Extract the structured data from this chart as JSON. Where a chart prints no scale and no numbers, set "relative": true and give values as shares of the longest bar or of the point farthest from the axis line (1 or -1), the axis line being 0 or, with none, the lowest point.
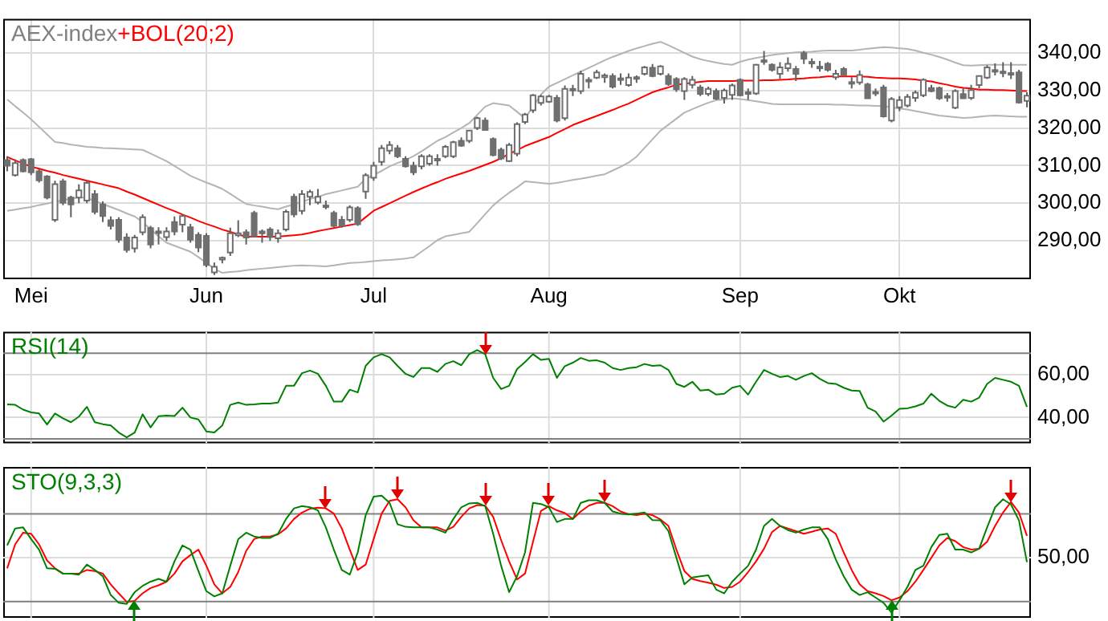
{
  "chart_data": [
    {
      "type": "candlestick",
      "title": "AEX-index",
      "legend": "top left",
      "grid": true,
      "categories": [
        null,
        null,
        null,
        "Mei",
        null,
        null,
        null,
        null,
        null,
        null,
        null,
        null,
        null,
        null,
        null,
        null,
        null,
        null,
        null,
        null,
        null,
        null,
        null,
        null,
        null,
        "Jun",
        null,
        null,
        null,
        null,
        null,
        null,
        null,
        null,
        null,
        null,
        null,
        null,
        null,
        null,
        null,
        null,
        null,
        null,
        null,
        null,
        "Jul",
        null,
        null,
        null,
        null,
        null,
        null,
        null,
        null,
        null,
        null,
        null,
        null,
        null,
        null,
        null,
        null,
        null,
        null,
        null,
        null,
        null,
        "Aug",
        null,
        null,
        null,
        null,
        null,
        null,
        null,
        null,
        null,
        null,
        null,
        null,
        null,
        null,
        null,
        null,
        null,
        null,
        null,
        null,
        null,
        null,
        null,
        "Sep",
        null,
        null,
        null,
        null,
        null,
        null,
        null,
        null,
        null,
        null,
        null,
        null,
        null,
        null,
        null,
        null,
        null,
        null,
        null,
        "Okt",
        null,
        null,
        null,
        null,
        null,
        null,
        null,
        null,
        null,
        null,
        null,
        null,
        null,
        null,
        null,
        null
      ],
      "ylim": [
        279.8,
        349
      ],
      "yticks": [
        {
          "value": 290,
          "label": "290,00"
        },
        {
          "value": 300,
          "label": "300,00"
        },
        {
          "value": 310,
          "label": "310,00"
        },
        {
          "value": 320,
          "label": "320,00"
        },
        {
          "value": 330,
          "label": "330,00"
        },
        {
          "value": 340,
          "label": "340,00"
        }
      ],
      "ohlc": [
        [
          311.5,
          312.5,
          308.5,
          310
        ],
        [
          307.5,
          311.7,
          307.1,
          310.7
        ],
        [
          311.5,
          311.9,
          308.2,
          308.5
        ],
        [
          311.7,
          312,
          307.5,
          308.2
        ],
        [
          308.5,
          309,
          305.5,
          306.1
        ],
        [
          307.1,
          307.5,
          301,
          301.5
        ],
        [
          295.6,
          306,
          295,
          305.1
        ],
        [
          305.8,
          306.5,
          299.5,
          300.1
        ],
        [
          301.5,
          302,
          296.3,
          299.7
        ],
        [
          301.5,
          305,
          300,
          303.4
        ],
        [
          300.7,
          306,
          300,
          305.4
        ],
        [
          302.4,
          303.5,
          297,
          297.7
        ],
        [
          299.7,
          300.5,
          295,
          296.6
        ],
        [
          295.5,
          296.5,
          293,
          294
        ],
        [
          295.6,
          296.3,
          289.5,
          290.3
        ],
        [
          290.9,
          292,
          286.9,
          287.6
        ],
        [
          288,
          291.6,
          286.9,
          290.9
        ],
        [
          292.3,
          297,
          291.5,
          296.3
        ],
        [
          293.4,
          294,
          288,
          289
        ],
        [
          292.5,
          293.6,
          289,
          292.3
        ],
        [
          291,
          293.6,
          290,
          292.5
        ],
        [
          295,
          296.5,
          291.5,
          292.5
        ],
        [
          294.3,
          297,
          292.3,
          296.6
        ],
        [
          293.6,
          294.5,
          289.5,
          290.3
        ],
        [
          291.6,
          292.3,
          287,
          288.2
        ],
        [
          291.3,
          292,
          283,
          283.6
        ],
        [
          281.6,
          284.2,
          280.9,
          283.1
        ],
        [
          285,
          285.8,
          284,
          285.5
        ],
        [
          286.9,
          293.5,
          286,
          292
        ],
        [
          291.5,
          295.5,
          291,
          292
        ],
        [
          292.3,
          293,
          289,
          290.9
        ],
        [
          297.4,
          298,
          290.9,
          291.2
        ],
        [
          292.5,
          293,
          289.5,
          292
        ],
        [
          293,
          293.6,
          290,
          291
        ],
        [
          290.7,
          293,
          289.5,
          292
        ],
        [
          293,
          298.3,
          292.5,
          297.7
        ],
        [
          301.7,
          302.5,
          296.3,
          297
        ],
        [
          298,
          303.5,
          297,
          302.4
        ],
        [
          301.7,
          303.6,
          299.5,
          303
        ],
        [
          300.2,
          303.8,
          299.7,
          301.7
        ],
        [
          299.4,
          300.7,
          298.4,
          299
        ],
        [
          297.4,
          298,
          293.6,
          294
        ],
        [
          295.6,
          296.6,
          293.5,
          294
        ],
        [
          295.6,
          299.5,
          295,
          298.9
        ],
        [
          298.7,
          299.2,
          294,
          294.4
        ],
        [
          303.1,
          308,
          301.2,
          307.4
        ],
        [
          306.8,
          311,
          306,
          310
        ],
        [
          311,
          315.5,
          310,
          314.6
        ],
        [
          314,
          316.5,
          313,
          315.5
        ],
        [
          314.6,
          315.5,
          312,
          312.5
        ],
        [
          311.8,
          312.5,
          309.5,
          309.8
        ],
        [
          310,
          311,
          307.5,
          308.2
        ],
        [
          309.8,
          313,
          309,
          312.5
        ],
        [
          310.5,
          313,
          310,
          312.5
        ],
        [
          311.5,
          313,
          310,
          311.8
        ],
        [
          312.5,
          315.5,
          312,
          315
        ],
        [
          312.5,
          316.6,
          312,
          316.2
        ],
        [
          316.6,
          317.5,
          315,
          315.3
        ],
        [
          316.6,
          319.5,
          316,
          319.3
        ],
        [
          320,
          323,
          319.5,
          322.6
        ],
        [
          322,
          322.8,
          319.5,
          319.5
        ],
        [
          317.1,
          317.5,
          312.5,
          312.8
        ],
        [
          314.2,
          314.8,
          311.5,
          311.9
        ],
        [
          311.2,
          316,
          311,
          315.5
        ],
        [
          313.2,
          321.5,
          312.5,
          321
        ],
        [
          321.6,
          324,
          321,
          323.6
        ],
        [
          324.7,
          329,
          324,
          328.7
        ],
        [
          326.7,
          328.8,
          326,
          328.4
        ],
        [
          327,
          328.8,
          326.7,
          328.4
        ],
        [
          328,
          328.8,
          321.5,
          322
        ],
        [
          322.6,
          331.3,
          322,
          330.4
        ],
        [
          330,
          331.5,
          328.5,
          330.4
        ],
        [
          329.8,
          335.2,
          329,
          334.4
        ],
        [
          332.4,
          333.5,
          330.5,
          332.8
        ],
        [
          333.4,
          335.5,
          333,
          334.8
        ],
        [
          333.5,
          334.5,
          332,
          334
        ],
        [
          333.8,
          334.5,
          330.5,
          331
        ],
        [
          333,
          334.5,
          331.5,
          333.2
        ],
        [
          331.4,
          334.5,
          331,
          333.4
        ],
        [
          333.5,
          334,
          332,
          333.5
        ],
        [
          334.4,
          336.5,
          334,
          336.1
        ],
        [
          336,
          337,
          333.5,
          333.8
        ],
        [
          334.4,
          336.7,
          334,
          336.4
        ],
        [
          333.8,
          334.5,
          331.2,
          331.7
        ],
        [
          333,
          333.5,
          329.6,
          330.3
        ],
        [
          329.8,
          333.5,
          327.5,
          333
        ],
        [
          331.5,
          333.8,
          330.5,
          332.8
        ],
        [
          330.8,
          331.5,
          328.5,
          329.1
        ],
        [
          329.1,
          331,
          328.5,
          330.4
        ],
        [
          329.8,
          330.5,
          327.5,
          327.8
        ],
        [
          328,
          330.5,
          326.5,
          330
        ],
        [
          328.8,
          331.8,
          327.5,
          331.3
        ],
        [
          332.8,
          333.2,
          328.5,
          328.7
        ],
        [
          329.5,
          330.5,
          327.5,
          329.3
        ],
        [
          329.2,
          337,
          328.8,
          336.8
        ],
        [
          337.6,
          340.5,
          336.8,
          338
        ],
        [
          336.8,
          337.2,
          335,
          335.5
        ],
        [
          334.4,
          337.5,
          333,
          336.1
        ],
        [
          335.9,
          338.8,
          335,
          337.1
        ],
        [
          335.7,
          336.5,
          332.5,
          334.4
        ],
        [
          339.9,
          340.5,
          337,
          338.4
        ],
        [
          337.5,
          338.5,
          336,
          337.6
        ],
        [
          336.3,
          337.8,
          335,
          336.1
        ],
        [
          337.1,
          337.5,
          335,
          335.5
        ],
        [
          333.5,
          335.5,
          332.8,
          334.4
        ],
        [
          335.7,
          336.2,
          334,
          334.1
        ],
        [
          332.2,
          333.5,
          330.5,
          332
        ],
        [
          332.1,
          335.3,
          331.5,
          334.1
        ],
        [
          331.6,
          332,
          327.8,
          327.9
        ],
        [
          329.6,
          330.5,
          328.5,
          329.4
        ],
        [
          330.8,
          331.5,
          322.8,
          323.1
        ],
        [
          322,
          328.2,
          321.5,
          327.7
        ],
        [
          325.5,
          328.5,
          324.5,
          327.4
        ],
        [
          326,
          329,
          325.5,
          328.3
        ],
        [
          328,
          330,
          327,
          329.4
        ],
        [
          328.7,
          333.2,
          328.2,
          332.8
        ],
        [
          330.6,
          331.5,
          329.5,
          329.8
        ],
        [
          330.6,
          331,
          327.5,
          327.9
        ],
        [
          328.5,
          329.3,
          327,
          328.2
        ],
        [
          325.4,
          330.3,
          325,
          329.8
        ],
        [
          329,
          330.5,
          327.8,
          327.9
        ],
        [
          328,
          331.5,
          327.5,
          330.1
        ],
        [
          331.4,
          334,
          330.5,
          333.8
        ],
        [
          333.4,
          336.7,
          333,
          336.1
        ],
        [
          335.3,
          337.2,
          334,
          335.4
        ],
        [
          334.9,
          337.5,
          333.5,
          335
        ],
        [
          334.5,
          337.5,
          333,
          334.6
        ],
        [
          334.8,
          335.5,
          326.5,
          326.8
        ],
        [
          327.2,
          329.5,
          325.5,
          328.6
        ]
      ],
      "series": [
        {
          "name": "+BOL(20;2)",
          "type": "line",
          "color": "#ff0000",
          "values": [
            312.3,
            311.4,
            310.6,
            309.7,
            309.2,
            308.6,
            308.1,
            307.5,
            307,
            306.5,
            306,
            305.5,
            305,
            304.5,
            304,
            303.1,
            302.3,
            301.4,
            300.5,
            299.6,
            298.7,
            297.9,
            297,
            296.2,
            295.3,
            294.5,
            293.8,
            293,
            292.4,
            291.7,
            291.1,
            291.1,
            291.1,
            291.1,
            291.1,
            291.3,
            291.5,
            291.7,
            292.1,
            292.6,
            293,
            293.4,
            293.8,
            294.2,
            294.6,
            296.3,
            298,
            299,
            300,
            301,
            302,
            303,
            303.9,
            304.8,
            305.6,
            306.5,
            307.2,
            307.9,
            308.6,
            309.4,
            310.2,
            311,
            312,
            313.1,
            314.1,
            315.2,
            316,
            316.8,
            317.6,
            318.7,
            319.7,
            320.8,
            321.6,
            322.4,
            323.2,
            324,
            324.8,
            325.7,
            326.5,
            327.5,
            328.5,
            329.5,
            330.2,
            330.8,
            331.5,
            331.8,
            332,
            332.3,
            332.5,
            332.5,
            332.5,
            332.5,
            332.6,
            332.6,
            332.6,
            332.7,
            332.7,
            332.8,
            332.9,
            333.1,
            333.2,
            333.4,
            333.5,
            333.7,
            333.7,
            333.7,
            333.7,
            333.7,
            333.6,
            333.4,
            333.3,
            333.2,
            333.2,
            333.1,
            332.9,
            332.6,
            332.4,
            331.9,
            331.5,
            331,
            330.7,
            330.5,
            330.2,
            330.2,
            330.1,
            330.1,
            330,
            329.9,
            329.8
          ]
        },
        {
          "type": "line",
          "color": "#b4b4b4",
          "values": [
            327.6,
            325.8,
            324.1,
            322.3,
            320.3,
            318.3,
            316.3,
            316,
            315.6,
            315.3,
            315,
            314.9,
            314.7,
            314.6,
            314.5,
            314.4,
            314.3,
            314.2,
            313.2,
            312.2,
            311.2,
            309.9,
            308.6,
            307.3,
            306.4,
            305.5,
            304.7,
            303.8,
            302.5,
            301.1,
            299.8,
            299.4,
            299.1,
            298.7,
            298.4,
            299.1,
            299.7,
            300.4,
            301.1,
            301.7,
            302.4,
            302.9,
            303.4,
            303.9,
            304.4,
            306.5,
            307.5,
            308.6,
            309.8,
            310.7,
            311.5,
            312.5,
            313.8,
            315.2,
            316.6,
            317.6,
            318.8,
            320,
            321.3,
            323.5,
            325.7,
            326.6,
            326.3,
            326,
            324.3,
            322.6,
            325.7,
            328.9,
            331,
            332,
            333,
            334,
            335,
            336,
            337,
            338,
            338.9,
            339.7,
            340.5,
            341.2,
            341.8,
            342.4,
            342.9,
            342,
            341,
            340,
            339,
            338.3,
            337.8,
            337.4,
            337,
            336.8,
            337.6,
            338.2,
            338.6,
            339,
            339.4,
            339.7,
            339.9,
            340.1,
            340.2,
            340.3,
            340.5,
            340.6,
            340.6,
            340.6,
            340.6,
            340.8,
            341.1,
            341.3,
            341.5,
            341.4,
            341.2,
            341,
            340.6,
            340,
            339.5,
            338.9,
            338.2,
            337.4,
            336.7,
            336.6,
            336.7,
            336.8,
            336.8,
            336.8,
            336.8,
            336.8,
            336.8
          ]
        },
        {
          "type": "line",
          "color": "#b4b4b4",
          "values": [
            298,
            298.3,
            298.7,
            299,
            299.5,
            299.9,
            300.4,
            300.8,
            301.2,
            301.6,
            301.4,
            300.6,
            299.8,
            299,
            298.2,
            297.3,
            296.5,
            295,
            293.1,
            291.2,
            289.5,
            288.7,
            287.9,
            287.1,
            285.7,
            284.1,
            282.6,
            281.5,
            281.7,
            281.9,
            282.2,
            282.4,
            282.6,
            282.8,
            283,
            283.2,
            283.4,
            283.5,
            283.4,
            283.3,
            283.2,
            283.5,
            283.8,
            284.1,
            284.2,
            284.4,
            284.6,
            284.8,
            284.9,
            285.1,
            285.3,
            285.6,
            287.1,
            288.6,
            290.2,
            291.2,
            291.6,
            292,
            292.4,
            294.7,
            297.1,
            299.4,
            301.2,
            302.8,
            304.2,
            305.8,
            305.6,
            305.4,
            305.2,
            305.4,
            305.8,
            306.2,
            306.5,
            306.9,
            307.3,
            307.7,
            308.7,
            309.7,
            310.8,
            312.4,
            314.7,
            317,
            319.3,
            320.9,
            322.5,
            324.1,
            325,
            325.9,
            326.7,
            327.4,
            327.6,
            327.9,
            327.7,
            327.4,
            327.1,
            326.8,
            326.4,
            326.3,
            326.3,
            326.3,
            326.3,
            326.3,
            326.3,
            326.3,
            326.2,
            326.2,
            326.1,
            326,
            326,
            325.9,
            325.8,
            325.5,
            325.2,
            324.9,
            324.5,
            324.1,
            323.7,
            323.3,
            323.1,
            322.9,
            322.7,
            322.8,
            323,
            323.2,
            323.3,
            323.2,
            323.1,
            323,
            323
          ]
        }
      ]
    },
    {
      "type": "line",
      "legend": "top left",
      "grid": true,
      "tick_labels": "y",
      "categories": [
        null,
        null,
        null,
        null,
        null,
        null,
        null,
        null,
        null,
        null,
        null,
        null,
        null,
        null,
        null,
        null,
        null,
        null,
        null,
        null,
        null,
        null,
        null,
        null,
        null,
        null,
        null,
        null,
        null,
        null,
        null,
        null,
        null,
        null,
        null,
        null,
        null,
        null,
        null,
        null,
        null,
        null,
        null,
        null,
        null,
        null,
        null,
        null,
        null,
        null,
        null,
        null,
        null,
        null,
        null,
        null,
        null,
        null,
        null,
        null,
        null,
        null,
        null,
        null,
        null,
        null,
        null,
        null,
        null,
        null,
        null,
        null,
        null,
        null,
        null,
        null,
        null,
        null,
        null,
        null,
        null,
        null,
        null,
        null,
        null,
        null,
        null,
        null,
        null,
        null,
        null,
        null,
        null,
        null,
        null,
        null,
        null,
        null,
        null,
        null,
        null,
        null,
        null,
        null,
        null,
        null,
        null,
        null,
        null,
        null,
        null,
        null,
        null,
        null,
        null,
        null,
        null,
        null,
        null,
        null,
        null,
        null,
        null,
        null,
        null,
        null,
        null,
        null,
        null
      ],
      "ylim": [
        28,
        80
      ],
      "yticks": [
        {
          "value": 40,
          "label": "40,00"
        },
        {
          "value": 60,
          "label": "60,00"
        }
      ],
      "ref_lines": [
        {
          "axis": "y",
          "value": 30,
          "color": "#808080"
        },
        {
          "axis": "y",
          "value": 70,
          "color": "#808080"
        }
      ],
      "series": [
        {
          "name": "RSI(14)",
          "color": "#008000",
          "values": [
            46.1,
            45.9,
            43.7,
            42.4,
            41.9,
            36.7,
            41.9,
            39.6,
            37.8,
            40.4,
            45,
            37.8,
            36.9,
            36.3,
            33,
            30.7,
            33,
            41.5,
            35.4,
            40.6,
            40.9,
            40.7,
            44.6,
            40,
            39.1,
            33.5,
            33,
            36.3,
            45.9,
            47,
            45.9,
            46.1,
            46.5,
            46.5,
            47,
            54.8,
            54.8,
            60.7,
            61.9,
            60.4,
            54.8,
            47.4,
            47.4,
            53,
            51.7,
            64.1,
            68.1,
            69.6,
            68.1,
            64.1,
            60.4,
            58.9,
            63.1,
            63.1,
            61.3,
            65,
            66.3,
            64.4,
            69.6,
            71.5,
            69.6,
            58.5,
            53.3,
            54.8,
            62.6,
            65.9,
            69.6,
            66.9,
            67.4,
            58.5,
            64,
            65.6,
            67.8,
            66.5,
            66.7,
            65.6,
            63.1,
            62.2,
            63.1,
            63.5,
            65,
            64.1,
            64.4,
            62.2,
            55.7,
            54.3,
            56.7,
            52.6,
            53,
            50.7,
            51.1,
            53.9,
            54.8,
            50.7,
            56.7,
            62.2,
            60.4,
            58.9,
            59.4,
            57.6,
            59.4,
            60.7,
            58.1,
            56.1,
            55.7,
            53.9,
            52.6,
            52.4,
            44.6,
            42.8,
            38.1,
            40.9,
            44.1,
            44.3,
            45.2,
            46.5,
            51.1,
            47.8,
            45.6,
            44.6,
            48.3,
            47.4,
            49.3,
            55.7,
            58.5,
            57.6,
            56.7,
            54.8,
            45
          ]
        }
      ]
    },
    {
      "type": "line",
      "legend": "top left",
      "grid": true,
      "tick_labels": "y",
      "relative": true,
      "categories": [
        null,
        null,
        null,
        null,
        null,
        null,
        null,
        null,
        null,
        null,
        null,
        null,
        null,
        null,
        null,
        null,
        null,
        null,
        null,
        null,
        null,
        null,
        null,
        null,
        null,
        null,
        null,
        null,
        null,
        null,
        null,
        null,
        null,
        null,
        null,
        null,
        null,
        null,
        null,
        null,
        null,
        null,
        null,
        null,
        null,
        null,
        null,
        null,
        null,
        null,
        null,
        null,
        null,
        null,
        null,
        null,
        null,
        null,
        null,
        null,
        null,
        null,
        null,
        null,
        null,
        null,
        null,
        null,
        null,
        null,
        null,
        null,
        null,
        null,
        null,
        null,
        null,
        null,
        null,
        null,
        null,
        null,
        null,
        null,
        null,
        null,
        null,
        null,
        null,
        null,
        null,
        null,
        null,
        null,
        null,
        null,
        null,
        null,
        null,
        null,
        null,
        null,
        null,
        null,
        null,
        null,
        null,
        null,
        null,
        null,
        null,
        null,
        null,
        null,
        null,
        null,
        null,
        null,
        null,
        null,
        null,
        null,
        null,
        null,
        null,
        null,
        null,
        null,
        null
      ],
      "annotations": [
        "50,00"
      ],
      "ref_lines": [
        {
          "axis": "y",
          "value": 0.094,
          "color": "#808080"
        },
        {
          "axis": "y",
          "value": 0.469,
          "color": "#dcdcdc"
        },
        {
          "axis": "y",
          "value": 0.844,
          "color": "#808080"
        }
      ],
      "series": [
        {
          "name": "STO(9,3,3)",
          "color": "#008000",
          "values": [
            0.574,
            0.719,
            0.728,
            0.628,
            0.538,
            0.378,
            0.374,
            0.333,
            0.333,
            0.324,
            0.41,
            0.364,
            0.31,
            0.15,
            0.083,
            0.074,
            0.174,
            0.228,
            0.264,
            0.288,
            0.264,
            0.438,
            0.574,
            0.538,
            0.355,
            0.183,
            0.138,
            0.164,
            0.4,
            0.628,
            0.683,
            0.65,
            0.638,
            0.638,
            0.674,
            0.8,
            0.891,
            0.91,
            0.9,
            0.874,
            0.728,
            0.538,
            0.364,
            0.324,
            0.514,
            0.833,
            0.991,
            1,
            0.938,
            0.755,
            0.733,
            0.728,
            0.728,
            0.728,
            0.71,
            0.683,
            0.8,
            0.9,
            0.933,
            0.938,
            0.91,
            0.674,
            0.4,
            0.174,
            0.31,
            0.514,
            0.938,
            0.928,
            0.9,
            0.774,
            0.8,
            0.8,
            0.938,
            0.96,
            0.96,
            0.938,
            0.864,
            0.846,
            0.838,
            0.846,
            0.855,
            0.791,
            0.788,
            0.696,
            0.469,
            0.241,
            0.3,
            0.31,
            0.319,
            0.196,
            0.164,
            0.264,
            0.333,
            0.4,
            0.538,
            0.741,
            0.8,
            0.741,
            0.705,
            0.683,
            0.71,
            0.728,
            0.728,
            0.628,
            0.455,
            0.31,
            0.196,
            0.15,
            0.174,
            0.128,
            0.083,
            0,
            0.105,
            0.219,
            0.364,
            0.4,
            0.56,
            0.664,
            0.674,
            0.538,
            0.538,
            0.514,
            0.546,
            0.728,
            0.9,
            0.969,
            0.924,
            0.788,
            0.431
          ]
        },
        {
          "color": "#ff0000",
          "values": [
            0.378,
            0.583,
            0.683,
            0.674,
            0.583,
            0.446,
            0.378,
            0.333,
            0.333,
            0.333,
            0.364,
            0.355,
            0.333,
            0.241,
            0.164,
            0.091,
            0.1,
            0.164,
            0.21,
            0.233,
            0.264,
            0.333,
            0.438,
            0.491,
            0.538,
            0.4,
            0.241,
            0.164,
            0.219,
            0.346,
            0.528,
            0.628,
            0.65,
            0.65,
            0.669,
            0.719,
            0.8,
            0.855,
            0.888,
            0.896,
            0.891,
            0.846,
            0.719,
            0.538,
            0.364,
            0.41,
            0.628,
            0.846,
            0.955,
            0.969,
            0.9,
            0.788,
            0.728,
            0.728,
            0.728,
            0.7,
            0.733,
            0.819,
            0.891,
            0.919,
            0.914,
            0.819,
            0.619,
            0.438,
            0.283,
            0.333,
            0.605,
            0.869,
            0.91,
            0.874,
            0.85,
            0.8,
            0.864,
            0.914,
            0.938,
            0.938,
            0.91,
            0.864,
            0.841,
            0.833,
            0.846,
            0.833,
            0.796,
            0.741,
            0.538,
            0.355,
            0.288,
            0.269,
            0.255,
            0.238,
            0.21,
            0.219,
            0.264,
            0.346,
            0.438,
            0.546,
            0.688,
            0.741,
            0.719,
            0.696,
            0.674,
            0.691,
            0.71,
            0.719,
            0.674,
            0.514,
            0.364,
            0.241,
            0.183,
            0.164,
            0.141,
            0.105,
            0.128,
            0.183,
            0.264,
            0.364,
            0.469,
            0.574,
            0.638,
            0.61,
            0.56,
            0.538,
            0.546,
            0.605,
            0.741,
            0.855,
            0.946,
            0.855,
            0.656
          ]
        }
      ]
    }
  ]
}
